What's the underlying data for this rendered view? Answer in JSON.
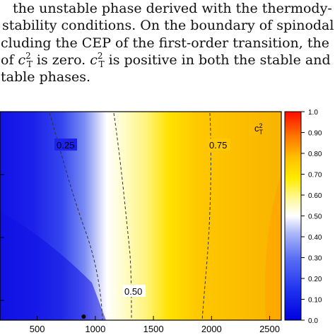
{
  "paragraph": {
    "line1": "the unstable phase derived with the thermody-",
    "line2": "stability conditions. On the boundary of spinodal",
    "line3_a": "cluding the CEP of the first-order transition, the",
    "line4_a": "of ",
    "line4_sym": "c",
    "line4_sup": "2",
    "line4_sub": "T",
    "line4_b": " is zero. ",
    "line4_c": " is positive in both the stable and",
    "line5": "table phases."
  },
  "chart_data": {
    "type": "heatmap",
    "quantity_label": "c",
    "quantity_sup": "2",
    "quantity_sub": "T",
    "x_tick_labels": [
      "500",
      "1000",
      "1500",
      "2000",
      "2500"
    ],
    "x_ticks": [
      500,
      1000,
      1500,
      2000,
      2500
    ],
    "xlim": [
      180,
      2600
    ],
    "colorbar": {
      "range": [
        0.0,
        1.0
      ],
      "tick_values": [
        0.0,
        0.1,
        0.2,
        0.3,
        0.4,
        0.5,
        0.6,
        0.7,
        0.8,
        0.9,
        1.0
      ],
      "tick_labels": [
        "0.0",
        "0.10",
        "0.20",
        "0.30",
        "0.40",
        "0.50",
        "0.60",
        "0.70",
        "0.80",
        "0.90",
        "1.0"
      ],
      "colors": [
        "#1010e8",
        "#2e3cf0",
        "#5a6ff5",
        "#8e9ff8",
        "#c8d0fb",
        "#ffffff",
        "#fffab0",
        "#ffee00",
        "#ffc400",
        "#ff8000",
        "#ff1a00"
      ]
    },
    "contours": [
      {
        "label": "0.25",
        "value": 0.25
      },
      {
        "label": "0.50",
        "value": 0.5
      },
      {
        "label": "0.75",
        "value": 0.75
      }
    ],
    "marker": {
      "x": 900,
      "label": ""
    }
  }
}
